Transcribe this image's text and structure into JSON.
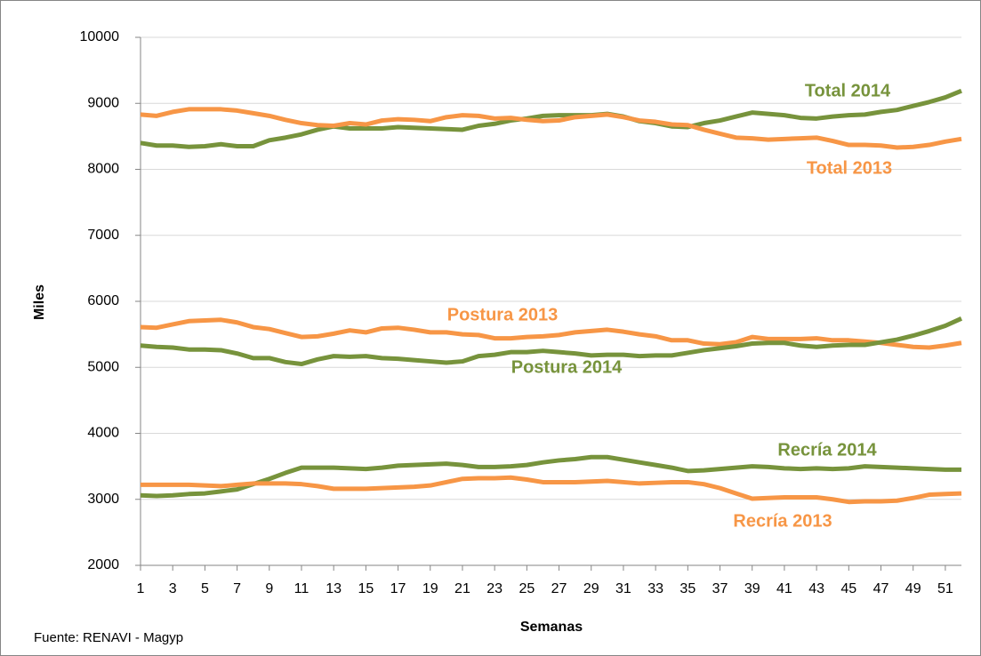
{
  "chart_data": {
    "type": "line",
    "x_label": "Semanas",
    "y_label": "Miles",
    "source": "Fuente: RENAVI - Magyp",
    "x": [
      1,
      2,
      3,
      4,
      5,
      6,
      7,
      8,
      9,
      10,
      11,
      12,
      13,
      14,
      15,
      16,
      17,
      18,
      19,
      20,
      21,
      22,
      23,
      24,
      25,
      26,
      27,
      28,
      29,
      30,
      31,
      32,
      33,
      34,
      35,
      36,
      37,
      38,
      39,
      40,
      41,
      42,
      43,
      44,
      45,
      46,
      47,
      48,
      49,
      50,
      51,
      52
    ],
    "xlim": [
      1,
      52
    ],
    "xticks": [
      1,
      3,
      5,
      7,
      9,
      11,
      13,
      15,
      17,
      19,
      21,
      23,
      25,
      27,
      29,
      31,
      33,
      35,
      37,
      39,
      41,
      43,
      45,
      47,
      49,
      51
    ],
    "ylim": [
      2000,
      10000
    ],
    "yticks": [
      2000,
      3000,
      4000,
      5000,
      6000,
      7000,
      8000,
      9000,
      10000
    ],
    "grid": true,
    "series": [
      {
        "name": "Total 2014",
        "color": "#77933c",
        "values": [
          8400,
          8360,
          8360,
          8340,
          8350,
          8380,
          8350,
          8350,
          8440,
          8480,
          8530,
          8600,
          8650,
          8620,
          8620,
          8620,
          8640,
          8630,
          8620,
          8610,
          8600,
          8660,
          8690,
          8740,
          8770,
          8810,
          8820,
          8820,
          8820,
          8840,
          8800,
          8730,
          8700,
          8650,
          8640,
          8700,
          8740,
          8800,
          8860,
          8840,
          8820,
          8780,
          8770,
          8800,
          8820,
          8830,
          8870,
          8900,
          8960,
          9020,
          9090,
          9190
        ]
      },
      {
        "name": "Total 2013",
        "color": "#f79646",
        "values": [
          8830,
          8810,
          8870,
          8910,
          8910,
          8910,
          8890,
          8850,
          8810,
          8750,
          8700,
          8670,
          8660,
          8700,
          8680,
          8740,
          8760,
          8750,
          8730,
          8790,
          8820,
          8810,
          8770,
          8780,
          8750,
          8730,
          8740,
          8790,
          8810,
          8830,
          8790,
          8740,
          8720,
          8680,
          8670,
          8600,
          8540,
          8480,
          8470,
          8450,
          8460,
          8470,
          8480,
          8430,
          8370,
          8370,
          8360,
          8330,
          8340,
          8370,
          8420,
          8460
        ]
      },
      {
        "name": "Postura 2013",
        "color": "#f79646",
        "values": [
          5610,
          5600,
          5650,
          5700,
          5710,
          5720,
          5680,
          5610,
          5580,
          5520,
          5460,
          5470,
          5510,
          5560,
          5530,
          5590,
          5600,
          5570,
          5530,
          5530,
          5500,
          5490,
          5440,
          5440,
          5460,
          5470,
          5490,
          5530,
          5550,
          5570,
          5540,
          5500,
          5470,
          5410,
          5410,
          5360,
          5350,
          5380,
          5460,
          5430,
          5430,
          5430,
          5440,
          5410,
          5410,
          5390,
          5370,
          5340,
          5310,
          5300,
          5330,
          5370
        ]
      },
      {
        "name": "Postura 2014",
        "color": "#77933c",
        "values": [
          5330,
          5310,
          5300,
          5270,
          5270,
          5260,
          5210,
          5140,
          5140,
          5080,
          5050,
          5120,
          5170,
          5160,
          5170,
          5140,
          5130,
          5110,
          5090,
          5070,
          5090,
          5170,
          5190,
          5230,
          5230,
          5250,
          5230,
          5210,
          5180,
          5190,
          5190,
          5170,
          5180,
          5180,
          5220,
          5260,
          5290,
          5320,
          5360,
          5370,
          5370,
          5330,
          5310,
          5330,
          5340,
          5340,
          5380,
          5420,
          5480,
          5550,
          5630,
          5740
        ]
      },
      {
        "name": "Recría 2014",
        "color": "#77933c",
        "values": [
          3060,
          3050,
          3060,
          3080,
          3090,
          3120,
          3150,
          3230,
          3310,
          3400,
          3480,
          3480,
          3480,
          3470,
          3460,
          3480,
          3510,
          3520,
          3530,
          3540,
          3520,
          3490,
          3490,
          3500,
          3520,
          3560,
          3590,
          3610,
          3640,
          3640,
          3600,
          3560,
          3520,
          3480,
          3430,
          3440,
          3460,
          3480,
          3500,
          3490,
          3470,
          3460,
          3470,
          3460,
          3470,
          3500,
          3490,
          3480,
          3470,
          3460,
          3450,
          3450
        ]
      },
      {
        "name": "Recría 2013",
        "color": "#f79646",
        "values": [
          3220,
          3220,
          3220,
          3220,
          3210,
          3200,
          3220,
          3240,
          3240,
          3240,
          3230,
          3200,
          3160,
          3160,
          3160,
          3170,
          3180,
          3190,
          3210,
          3260,
          3310,
          3320,
          3320,
          3330,
          3300,
          3260,
          3260,
          3260,
          3270,
          3280,
          3260,
          3240,
          3250,
          3260,
          3260,
          3230,
          3170,
          3090,
          3010,
          3020,
          3030,
          3030,
          3030,
          3000,
          2960,
          2970,
          2970,
          2980,
          3020,
          3070,
          3080,
          3090
        ]
      }
    ]
  }
}
